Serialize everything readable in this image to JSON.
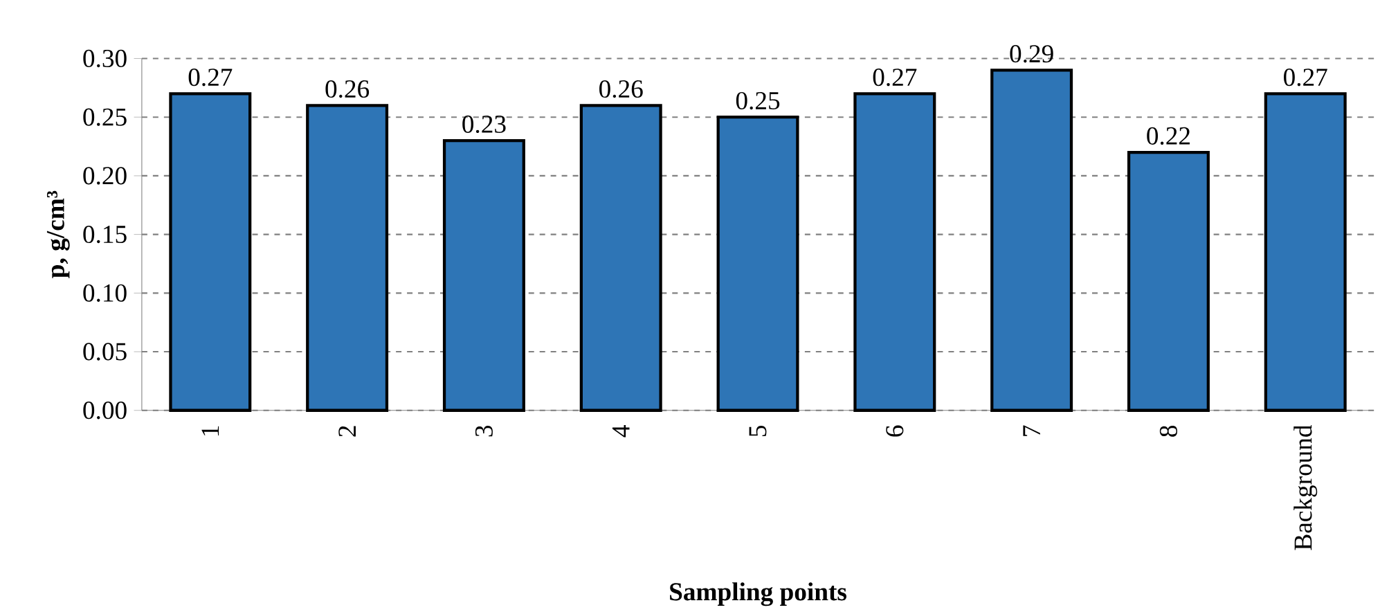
{
  "chart_data": {
    "type": "bar",
    "xlabel": "Sampling points",
    "ylabel": "p, g/cm³",
    "categories": [
      "1",
      "2",
      "3",
      "4",
      "5",
      "6",
      "7",
      "8",
      "Background"
    ],
    "values": [
      0.27,
      0.26,
      0.23,
      0.26,
      0.25,
      0.27,
      0.29,
      0.22,
      0.27
    ],
    "color": "#2e75b6",
    "data_labels": true,
    "grid": "y",
    "ylim": [
      0,
      0.3
    ],
    "yticks": [
      {
        "value": 0,
        "label": "0.00"
      },
      {
        "value": 0.05,
        "label": "0.05"
      },
      {
        "value": 0.1,
        "label": "0.10"
      },
      {
        "value": 0.15,
        "label": "0.15"
      },
      {
        "value": 0.2,
        "label": "0.20"
      },
      {
        "value": 0.25,
        "label": "0.25"
      },
      {
        "value": 0.3,
        "label": "0.30"
      }
    ]
  }
}
